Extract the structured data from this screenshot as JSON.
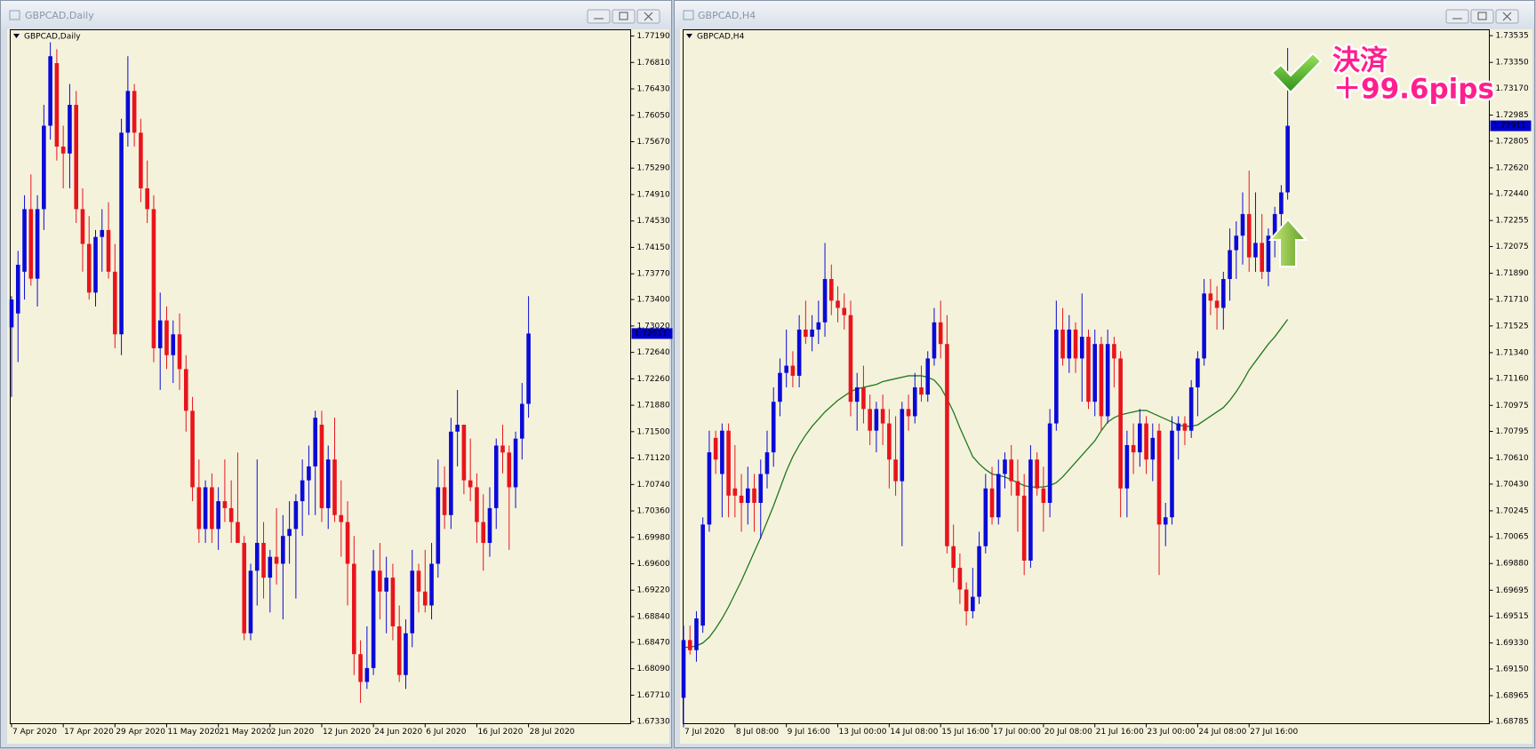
{
  "chart_data": [
    {
      "type": "candlestick",
      "title": "GBPCAD,Daily",
      "categories": [
        "7 Apr 2020",
        null,
        null,
        null,
        null,
        null,
        null,
        null,
        "17 Apr 2020",
        null,
        null,
        null,
        null,
        null,
        null,
        null,
        "29 Apr 2020",
        null,
        null,
        null,
        null,
        null,
        null,
        null,
        "11 May 2020",
        null,
        null,
        null,
        null,
        null,
        null,
        null,
        "21 May 2020",
        null,
        null,
        null,
        null,
        null,
        null,
        null,
        "2 Jun 2020",
        null,
        null,
        null,
        null,
        null,
        null,
        null,
        "12 Jun 2020",
        null,
        null,
        null,
        null,
        null,
        null,
        null,
        "24 Jun 2020",
        null,
        null,
        null,
        null,
        null,
        null,
        null,
        "6 Jul 2020",
        null,
        null,
        null,
        null,
        null,
        null,
        null,
        "16 Jul 2020",
        null,
        null,
        null,
        null,
        null,
        null,
        null,
        "28 Jul 2020"
      ],
      "open": [
        1.73,
        1.732,
        1.738,
        1.747,
        1.737,
        1.747,
        1.759,
        1.768,
        1.756,
        1.755,
        1.762,
        1.747,
        1.742,
        1.735,
        1.743,
        1.744,
        1.738,
        1.729,
        1.758,
        1.764,
        1.758,
        1.75,
        1.747,
        1.727,
        1.731,
        1.726,
        1.729,
        1.724,
        1.718,
        1.707,
        1.701,
        1.707,
        1.701,
        1.705,
        1.704,
        1.702,
        1.699,
        1.686,
        1.695,
        1.699,
        1.694,
        1.697,
        1.696,
        1.7,
        1.701,
        1.705,
        1.708,
        1.71,
        1.716,
        1.704,
        1.711,
        1.703,
        1.702,
        1.696,
        1.683,
        1.679,
        1.681,
        1.695,
        1.692,
        1.694,
        1.687,
        1.68,
        1.686,
        1.695,
        1.692,
        1.69,
        1.696,
        1.707,
        1.703,
        1.715,
        1.716,
        1.708,
        1.707,
        1.702,
        1.699,
        1.704,
        1.713,
        1.712,
        1.707,
        1.714,
        1.719
      ],
      "high": [
        1.7345,
        1.741,
        1.749,
        1.752,
        1.749,
        1.762,
        1.771,
        1.77,
        1.759,
        1.765,
        1.764,
        1.75,
        1.746,
        1.744,
        1.747,
        1.748,
        1.742,
        1.76,
        1.769,
        1.765,
        1.76,
        1.754,
        1.749,
        1.735,
        1.733,
        1.731,
        1.732,
        1.726,
        1.72,
        1.711,
        1.708,
        1.709,
        1.707,
        1.711,
        1.708,
        1.712,
        1.7,
        1.696,
        1.711,
        1.702,
        1.698,
        1.704,
        1.703,
        1.705,
        1.706,
        1.711,
        1.713,
        1.718,
        1.718,
        1.713,
        1.717,
        1.708,
        1.705,
        1.7,
        1.685,
        1.687,
        1.698,
        1.699,
        1.697,
        1.696,
        1.69,
        1.688,
        1.698,
        1.696,
        1.698,
        1.699,
        1.711,
        1.71,
        1.717,
        1.721,
        1.716,
        1.714,
        1.709,
        1.706,
        1.707,
        1.714,
        1.716,
        1.713,
        1.715,
        1.722,
        1.7345
      ],
      "low": [
        1.72,
        1.725,
        1.734,
        1.736,
        1.733,
        1.744,
        1.757,
        1.754,
        1.75,
        1.75,
        1.745,
        1.738,
        1.734,
        1.733,
        1.738,
        1.737,
        1.727,
        1.726,
        1.756,
        1.756,
        1.748,
        1.745,
        1.725,
        1.721,
        1.724,
        1.722,
        1.721,
        1.715,
        1.705,
        1.699,
        1.699,
        1.699,
        1.698,
        1.702,
        1.699,
        1.699,
        1.685,
        1.685,
        1.69,
        1.691,
        1.689,
        1.693,
        1.688,
        1.696,
        1.691,
        1.7,
        1.703,
        1.703,
        1.702,
        1.701,
        1.702,
        1.697,
        1.69,
        1.68,
        1.676,
        1.678,
        1.68,
        1.688,
        1.686,
        1.685,
        1.679,
        1.678,
        1.684,
        1.689,
        1.689,
        1.688,
        1.694,
        1.701,
        1.701,
        1.71,
        1.706,
        1.705,
        1.699,
        1.695,
        1.697,
        1.701,
        1.709,
        1.698,
        1.704,
        1.711,
        1.717
      ],
      "close": [
        1.734,
        1.739,
        1.747,
        1.737,
        1.747,
        1.759,
        1.769,
        1.756,
        1.755,
        1.762,
        1.747,
        1.742,
        1.735,
        1.743,
        1.744,
        1.738,
        1.729,
        1.758,
        1.764,
        1.758,
        1.75,
        1.747,
        1.727,
        1.731,
        1.726,
        1.729,
        1.724,
        1.718,
        1.707,
        1.701,
        1.707,
        1.701,
        1.705,
        1.704,
        1.702,
        1.699,
        1.686,
        1.695,
        1.699,
        1.694,
        1.697,
        1.696,
        1.7,
        1.701,
        1.705,
        1.708,
        1.71,
        1.717,
        1.704,
        1.711,
        1.703,
        1.702,
        1.696,
        1.683,
        1.679,
        1.681,
        1.695,
        1.692,
        1.694,
        1.687,
        1.68,
        1.686,
        1.695,
        1.692,
        1.69,
        1.696,
        1.707,
        1.703,
        1.715,
        1.716,
        1.708,
        1.707,
        1.702,
        1.699,
        1.704,
        1.713,
        1.712,
        1.707,
        1.714,
        1.719,
        1.72911
      ],
      "up_color": "#0a0ad8",
      "down_color": "#e8141c",
      "ylim": [
        1.673,
        1.7728
      ],
      "yticks": [
        {
          "value": 1.7719,
          "label": "1.77190"
        },
        {
          "value": 1.7681,
          "label": "1.76810"
        },
        {
          "value": 1.7643,
          "label": "1.76430"
        },
        {
          "value": 1.7605,
          "label": "1.76050"
        },
        {
          "value": 1.7567,
          "label": "1.75670"
        },
        {
          "value": 1.7529,
          "label": "1.75290"
        },
        {
          "value": 1.7491,
          "label": "1.74910"
        },
        {
          "value": 1.7453,
          "label": "1.74530"
        },
        {
          "value": 1.7415,
          "label": "1.74150"
        },
        {
          "value": 1.7377,
          "label": "1.73770"
        },
        {
          "value": 1.734,
          "label": "1.73400"
        },
        {
          "value": 1.7302,
          "label": "1.73020"
        },
        {
          "value": 1.7264,
          "label": "1.72640"
        },
        {
          "value": 1.7226,
          "label": "1.72260"
        },
        {
          "value": 1.7188,
          "label": "1.71880"
        },
        {
          "value": 1.715,
          "label": "1.71500"
        },
        {
          "value": 1.7112,
          "label": "1.71120"
        },
        {
          "value": 1.7074,
          "label": "1.70740"
        },
        {
          "value": 1.7036,
          "label": "1.70360"
        },
        {
          "value": 1.6998,
          "label": "1.69980"
        },
        {
          "value": 1.696,
          "label": "1.69600"
        },
        {
          "value": 1.6922,
          "label": "1.69220"
        },
        {
          "value": 1.6884,
          "label": "1.68840"
        },
        {
          "value": 1.6847,
          "label": "1.68470"
        },
        {
          "value": 1.6809,
          "label": "1.68090"
        },
        {
          "value": 1.6771,
          "label": "1.67710"
        },
        {
          "value": 1.6733,
          "label": "1.67330"
        }
      ],
      "last_price": 1.72911
    },
    {
      "type": "candlestick",
      "title": "GBPCAD,H4",
      "categories": [
        "7 Jul 2020",
        null,
        null,
        null,
        null,
        null,
        null,
        null,
        "8 Jul 08:00",
        null,
        null,
        null,
        null,
        null,
        null,
        null,
        "9 Jul 16:00",
        null,
        null,
        null,
        null,
        null,
        null,
        null,
        "13 Jul 00:00",
        null,
        null,
        null,
        null,
        null,
        null,
        null,
        "14 Jul 08:00",
        null,
        null,
        null,
        null,
        null,
        null,
        null,
        "15 Jul 16:00",
        null,
        null,
        null,
        null,
        null,
        null,
        null,
        "17 Jul 00:00",
        null,
        null,
        null,
        null,
        null,
        null,
        null,
        "20 Jul 08:00",
        null,
        null,
        null,
        null,
        null,
        null,
        null,
        "21 Jul 16:00",
        null,
        null,
        null,
        null,
        null,
        null,
        null,
        "23 Jul 00:00",
        null,
        null,
        null,
        null,
        null,
        null,
        null,
        "24 Jul 08:00",
        null,
        null,
        null,
        null,
        null,
        null,
        null,
        "27 Jul 16:00",
        null,
        null,
        null,
        null,
        null,
        null
      ],
      "open": [
        1.6895,
        1.6935,
        1.6928,
        1.6945,
        1.7015,
        1.7075,
        1.705,
        1.708,
        1.704,
        1.7035,
        1.703,
        1.704,
        1.703,
        1.705,
        1.7065,
        1.71,
        1.712,
        1.7125,
        1.7118,
        1.715,
        1.7145,
        1.715,
        1.7155,
        1.7185,
        1.717,
        1.7165,
        1.716,
        1.71,
        1.711,
        1.7095,
        1.708,
        1.7095,
        1.7085,
        1.706,
        1.7045,
        1.7095,
        1.709,
        1.711,
        1.7105,
        1.713,
        1.7155,
        1.714,
        1.7,
        1.6985,
        1.697,
        1.6955,
        1.6965,
        1.7,
        1.704,
        1.702,
        1.705,
        1.706,
        1.7045,
        1.7035,
        1.699,
        1.706,
        1.704,
        1.703,
        1.7085,
        1.715,
        1.713,
        1.715,
        1.713,
        1.7145,
        1.71,
        1.714,
        1.709,
        1.714,
        1.713,
        1.704,
        1.707,
        1.7065,
        1.7085,
        1.706,
        1.708,
        1.7015,
        1.702,
        1.708,
        1.7085,
        1.708,
        1.711,
        1.713,
        1.7175,
        1.717,
        1.7165,
        1.7185,
        1.7205,
        1.7215,
        1.723,
        1.72,
        1.721,
        1.719,
        1.7215,
        1.723,
        1.7245
      ],
      "high": [
        1.6945,
        1.6945,
        1.6955,
        1.702,
        1.708,
        1.708,
        1.7085,
        1.7085,
        1.707,
        1.705,
        1.7055,
        1.705,
        1.706,
        1.708,
        1.711,
        1.713,
        1.715,
        1.7135,
        1.716,
        1.717,
        1.716,
        1.717,
        1.721,
        1.7195,
        1.718,
        1.7175,
        1.717,
        1.712,
        1.7125,
        1.7105,
        1.71,
        1.7105,
        1.7095,
        1.709,
        1.71,
        1.7105,
        1.712,
        1.7125,
        1.7135,
        1.7165,
        1.717,
        1.716,
        1.7015,
        1.6995,
        1.6975,
        1.6985,
        1.701,
        1.705,
        1.7055,
        1.706,
        1.7065,
        1.707,
        1.706,
        1.705,
        1.707,
        1.7065,
        1.7055,
        1.7095,
        1.717,
        1.7165,
        1.716,
        1.7155,
        1.7175,
        1.715,
        1.715,
        1.7145,
        1.715,
        1.7145,
        1.7135,
        1.708,
        1.7085,
        1.7095,
        1.709,
        1.7085,
        1.7085,
        1.703,
        1.709,
        1.709,
        1.709,
        1.7115,
        1.7135,
        1.7185,
        1.7185,
        1.718,
        1.719,
        1.722,
        1.7225,
        1.7245,
        1.726,
        1.7245,
        1.723,
        1.722,
        1.7235,
        1.725,
        1.7345
      ],
      "low": [
        1.6875,
        1.6925,
        1.692,
        1.694,
        1.701,
        1.705,
        1.702,
        1.702,
        1.702,
        1.701,
        1.7015,
        1.701,
        1.7005,
        1.704,
        1.7055,
        1.709,
        1.711,
        1.711,
        1.711,
        1.714,
        1.7135,
        1.714,
        1.7145,
        1.716,
        1.7155,
        1.715,
        1.709,
        1.708,
        1.7085,
        1.707,
        1.7065,
        1.707,
        1.704,
        1.7035,
        1.7,
        1.708,
        1.7085,
        1.71,
        1.71,
        1.7125,
        1.713,
        1.6995,
        1.6975,
        1.696,
        1.6945,
        1.695,
        1.696,
        1.6995,
        1.7015,
        1.7015,
        1.704,
        1.7035,
        1.701,
        1.698,
        1.6985,
        1.7035,
        1.701,
        1.702,
        1.708,
        1.7125,
        1.712,
        1.712,
        1.71,
        1.7095,
        1.709,
        1.708,
        1.7085,
        1.711,
        1.702,
        1.702,
        1.705,
        1.7055,
        1.705,
        1.7045,
        1.698,
        1.7,
        1.7015,
        1.706,
        1.707,
        1.7075,
        1.709,
        1.7125,
        1.716,
        1.715,
        1.715,
        1.717,
        1.7185,
        1.7195,
        1.719,
        1.719,
        1.7185,
        1.718,
        1.72,
        1.7215,
        1.724
      ],
      "close": [
        1.6935,
        1.6928,
        1.695,
        1.7015,
        1.7065,
        1.706,
        1.708,
        1.7035,
        1.7035,
        1.703,
        1.704,
        1.703,
        1.705,
        1.7065,
        1.71,
        1.712,
        1.7125,
        1.7118,
        1.715,
        1.7145,
        1.715,
        1.7155,
        1.7185,
        1.717,
        1.7165,
        1.716,
        1.71,
        1.711,
        1.7095,
        1.708,
        1.7095,
        1.7085,
        1.706,
        1.7045,
        1.7095,
        1.709,
        1.711,
        1.7105,
        1.713,
        1.7155,
        1.714,
        1.7,
        1.6985,
        1.697,
        1.6955,
        1.6965,
        1.7,
        1.704,
        1.702,
        1.705,
        1.706,
        1.7045,
        1.7035,
        1.699,
        1.706,
        1.704,
        1.703,
        1.7085,
        1.715,
        1.713,
        1.715,
        1.713,
        1.7145,
        1.71,
        1.714,
        1.709,
        1.714,
        1.713,
        1.704,
        1.707,
        1.7065,
        1.7085,
        1.706,
        1.7075,
        1.7015,
        1.702,
        1.708,
        1.7085,
        1.708,
        1.711,
        1.713,
        1.7175,
        1.717,
        1.7165,
        1.7185,
        1.7205,
        1.7215,
        1.723,
        1.72,
        1.721,
        1.719,
        1.7215,
        1.723,
        1.7245,
        1.72911
      ],
      "up_color": "#0a0ad8",
      "down_color": "#e8141c",
      "ma": {
        "color": "#1e7a1e",
        "values": [
          1.693,
          1.693,
          1.6931,
          1.6933,
          1.6937,
          1.6943,
          1.695,
          1.6958,
          1.6967,
          1.6976,
          1.6986,
          1.6996,
          1.7006,
          1.7017,
          1.7028,
          1.704,
          1.7052,
          1.7062,
          1.707,
          1.7077,
          1.7083,
          1.7088,
          1.7093,
          1.7097,
          1.7101,
          1.7104,
          1.7107,
          1.7109,
          1.711,
          1.7111,
          1.7112,
          1.7114,
          1.7115,
          1.7116,
          1.7117,
          1.7118,
          1.7118,
          1.7118,
          1.7117,
          1.7115,
          1.711,
          1.7102,
          1.7093,
          1.7082,
          1.7072,
          1.7062,
          1.7057,
          1.7053,
          1.705,
          1.7049,
          1.7048,
          1.7046,
          1.7044,
          1.7042,
          1.7041,
          1.7041,
          1.7041,
          1.7042,
          1.7044,
          1.7048,
          1.7053,
          1.7058,
          1.7063,
          1.7068,
          1.7073,
          1.708,
          1.7086,
          1.7089,
          1.7091,
          1.7092,
          1.7093,
          1.7094,
          1.7094,
          1.7092,
          1.709,
          1.7088,
          1.7086,
          1.7084,
          1.7083,
          1.7083,
          1.7084,
          1.7087,
          1.709,
          1.7093,
          1.7096,
          1.7101,
          1.7107,
          1.7114,
          1.7122,
          1.7128,
          1.7134,
          1.714,
          1.7145,
          1.7151,
          1.7157
        ]
      },
      "ylim": [
        1.68771,
        1.73576
      ],
      "yticks": [
        1.73535,
        {
          "value": 1.7335,
          "label": "1.73350"
        },
        {
          "value": 1.7317,
          "label": "1.73170"
        },
        1.72985,
        1.72805,
        {
          "value": 1.7262,
          "label": "1.72620"
        },
        {
          "value": 1.7244,
          "label": "1.72440"
        },
        1.72255,
        1.72075,
        {
          "value": 1.7189,
          "label": "1.71890"
        },
        {
          "value": 1.7171,
          "label": "1.71710"
        },
        1.71525,
        {
          "value": 1.7134,
          "label": "1.71340"
        },
        {
          "value": 1.7116,
          "label": "1.71160"
        },
        1.70975,
        1.70795,
        {
          "value": 1.7061,
          "label": "1.70610"
        },
        {
          "value": 1.7043,
          "label": "1.70430"
        },
        1.70245,
        1.70065,
        {
          "value": 1.6988,
          "label": "1.69880"
        },
        1.69695,
        1.69515,
        {
          "value": 1.6933,
          "label": "1.69330"
        },
        {
          "value": 1.6915,
          "label": "1.69150"
        },
        1.68965,
        1.68785
      ],
      "last_price": 1.72911,
      "annotations": [
        "決済",
        "＋99.6pips"
      ]
    }
  ]
}
